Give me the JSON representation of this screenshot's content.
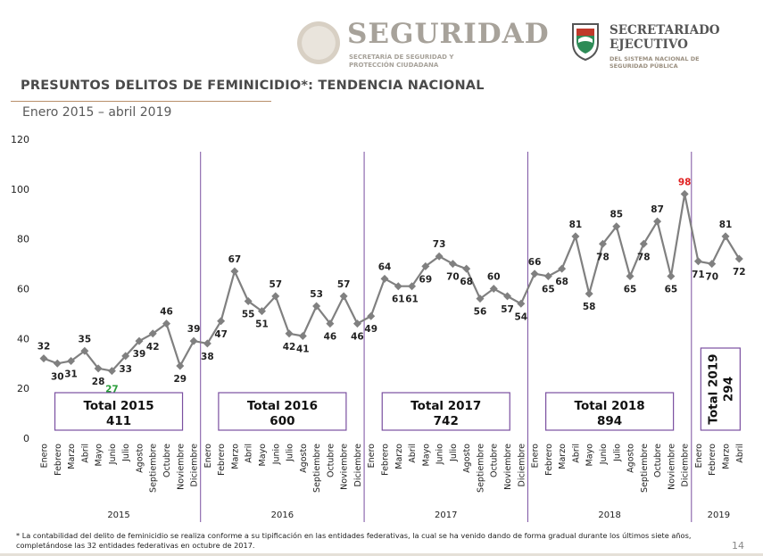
{
  "header": {
    "seguridad_title": "SEGURIDAD",
    "seguridad_sub": "SECRETARÍA DE SEGURIDAD Y PROTECCIÓN CIUDADANA",
    "sesnsp_title": "SECRETARIADO EJECUTIVO",
    "sesnsp_sub": "DEL SISTEMA NACIONAL DE SEGURIDAD PÚBLICA"
  },
  "page": {
    "title": "PRESUNTOS DELITOS DE FEMINICIDIO*: TENDENCIA NACIONAL",
    "subtitle": "Enero 2015 – abril 2019",
    "footnote": "* La contabilidad del delito de feminicidio se realiza conforme a su tipificación en las entidades federativas, la cual se ha venido dando de forma gradual durante los últimos siete años, completándose las 32 entidades federativas en octubre de 2017.",
    "page_number": "14"
  },
  "colors": {
    "line": "#808080",
    "year_divider": "#7a4fa0",
    "total_box_border": "#7a4fa0",
    "min_label": "#2a9d3a",
    "max_label": "#e02020",
    "title": "#4a4a4a"
  },
  "chart_data": {
    "type": "line",
    "title": "PRESUNTOS DELITOS DE FEMINICIDIO*: TENDENCIA NACIONAL",
    "ylim": [
      0,
      120
    ],
    "yticks": [
      0,
      20,
      40,
      60,
      80,
      100,
      120
    ],
    "grid": false,
    "legend": "none",
    "min_label": {
      "year": "2015",
      "month": "Junio",
      "value": 27
    },
    "max_label": {
      "year": "2018",
      "month": "Diciembre",
      "value": 98
    },
    "years": [
      {
        "year": "2015",
        "total_label": "Total 2015",
        "total": "411",
        "months": [
          "Enero",
          "Febrero",
          "Marzo",
          "Abril",
          "Mayo",
          "Junio",
          "Julio",
          "Agosto",
          "Septiembre",
          "Octubre",
          "Noviembre",
          "Diciembre"
        ],
        "values": [
          32,
          30,
          31,
          35,
          28,
          27,
          33,
          39,
          42,
          46,
          29,
          39
        ]
      },
      {
        "year": "2016",
        "total_label": "Total 2016",
        "total": "600",
        "months": [
          "Enero",
          "Febrero",
          "Marzo",
          "Abril",
          "Mayo",
          "Junio",
          "Julio",
          "Agosto",
          "Septiembre",
          "Octubre",
          "Noviembre",
          "Diciembre"
        ],
        "values": [
          38,
          47,
          67,
          55,
          51,
          57,
          42,
          41,
          53,
          46,
          57,
          46
        ]
      },
      {
        "year": "2017",
        "total_label": "Total 2017",
        "total": "742",
        "months": [
          "Enero",
          "Febrero",
          "Marzo",
          "Abril",
          "Mayo",
          "Junio",
          "Julio",
          "Agosto",
          "Septiembre",
          "Octubre",
          "Noviembre",
          "Diciembre"
        ],
        "values": [
          49,
          64,
          61,
          61,
          69,
          73,
          70,
          68,
          56,
          60,
          57,
          54
        ]
      },
      {
        "year": "2018",
        "total_label": "Total 2018",
        "total": "894",
        "months": [
          "Enero",
          "Febrero",
          "Marzo",
          "Abril",
          "Mayo",
          "Junio",
          "Julio",
          "Agosto",
          "Septiembre",
          "Octubre",
          "Noviembre",
          "Diciembre"
        ],
        "values": [
          66,
          65,
          68,
          81,
          58,
          78,
          85,
          65,
          78,
          87,
          65,
          98
        ]
      },
      {
        "year": "2019",
        "total_label": "Total 2019",
        "total": "294",
        "months": [
          "Enero",
          "Febrero",
          "Marzo",
          "Abril"
        ],
        "values": [
          71,
          70,
          81,
          72
        ]
      }
    ]
  }
}
